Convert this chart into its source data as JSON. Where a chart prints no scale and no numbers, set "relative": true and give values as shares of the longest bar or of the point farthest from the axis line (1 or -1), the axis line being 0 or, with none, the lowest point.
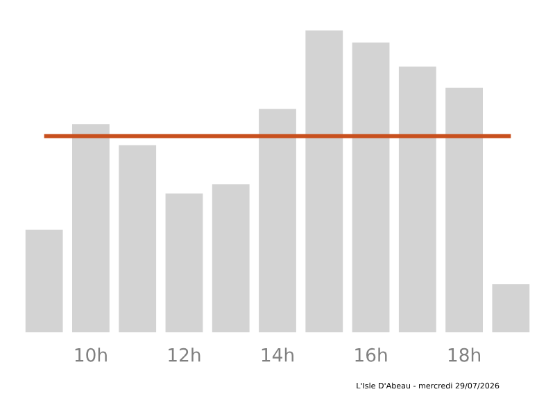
{
  "chart_data": {
    "type": "bar",
    "relative": true,
    "categories": [
      null,
      "10h",
      null,
      "12h",
      null,
      "14h",
      null,
      "16h",
      null,
      "18h",
      null
    ],
    "values": [
      0.34,
      0.69,
      0.62,
      0.46,
      0.49,
      0.74,
      1,
      0.96,
      0.88,
      0.81,
      0.16
    ],
    "color": "#d3d3d3",
    "ref_lines": [
      {
        "axis": "y",
        "value": 0.65,
        "color": "#c8501e"
      }
    ],
    "annotations": [
      "L'Isle D'Abeau - mercredi 29/07/2026"
    ],
    "grid": false,
    "legend": false
  }
}
